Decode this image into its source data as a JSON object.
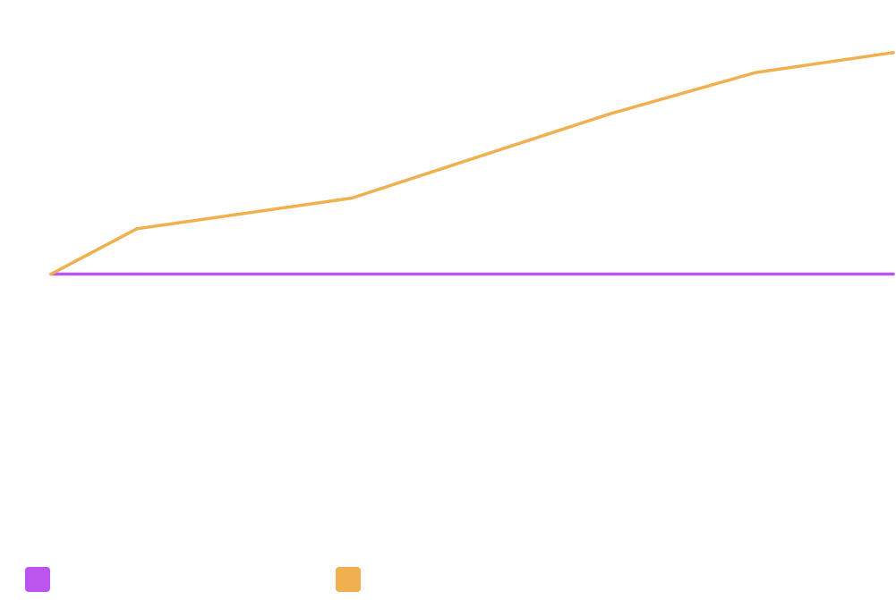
{
  "chart_data": {
    "type": "line",
    "title": "",
    "xlabel": "",
    "ylabel": "",
    "x": [
      0,
      1,
      3.5,
      6.5,
      8.2,
      9.8
    ],
    "xlim": [
      0,
      9.8
    ],
    "ylim": [
      -10.5,
      10
    ],
    "grid": false,
    "legend_placement": "bottom-left",
    "series": [
      {
        "name": "",
        "color": "#bb55ee",
        "values": [
          0,
          0,
          0,
          0,
          0,
          0
        ]
      },
      {
        "name": "",
        "color": "#f0b04f",
        "values": [
          0,
          1.7,
          2.85,
          6.0,
          7.55,
          8.3
        ]
      }
    ]
  }
}
